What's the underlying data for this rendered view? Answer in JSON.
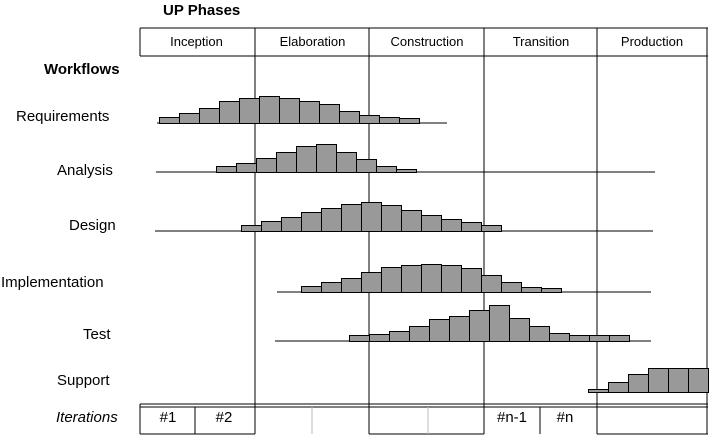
{
  "title": "UP Phases",
  "phases": [
    "Inception",
    "Elaboration",
    "Construction",
    "Transition",
    "Production"
  ],
  "workflows_heading": "Workflows",
  "workflows": [
    {
      "label": "Requirements",
      "histogram": [
        6,
        10,
        15,
        22,
        25,
        27,
        25,
        22,
        19,
        12,
        8,
        6,
        5
      ]
    },
    {
      "label": "Analysis",
      "histogram": [
        6,
        9,
        14,
        20,
        26,
        28,
        20,
        13,
        6,
        3
      ]
    },
    {
      "label": "Design",
      "histogram": [
        6,
        10,
        14,
        19,
        23,
        27,
        29,
        26,
        21,
        16,
        12,
        9,
        6
      ]
    },
    {
      "label": "Implementation",
      "histogram": [
        6,
        10,
        14,
        20,
        25,
        27,
        28,
        27,
        24,
        17,
        10,
        5,
        4
      ]
    },
    {
      "label": "Test",
      "histogram": [
        6,
        7,
        10,
        15,
        22,
        25,
        31,
        36,
        23,
        15,
        8,
        6,
        6,
        6
      ]
    },
    {
      "label": "Support",
      "histogram": [
        3,
        10,
        18,
        24,
        24,
        24
      ]
    }
  ],
  "iterations_heading": "Iterations",
  "iterations": [
    "#1",
    "#2",
    "#n-1",
    "#n"
  ],
  "colors": {
    "bar_fill": "#999999",
    "line": "#000000",
    "grid_light": "#bbbbbb"
  }
}
